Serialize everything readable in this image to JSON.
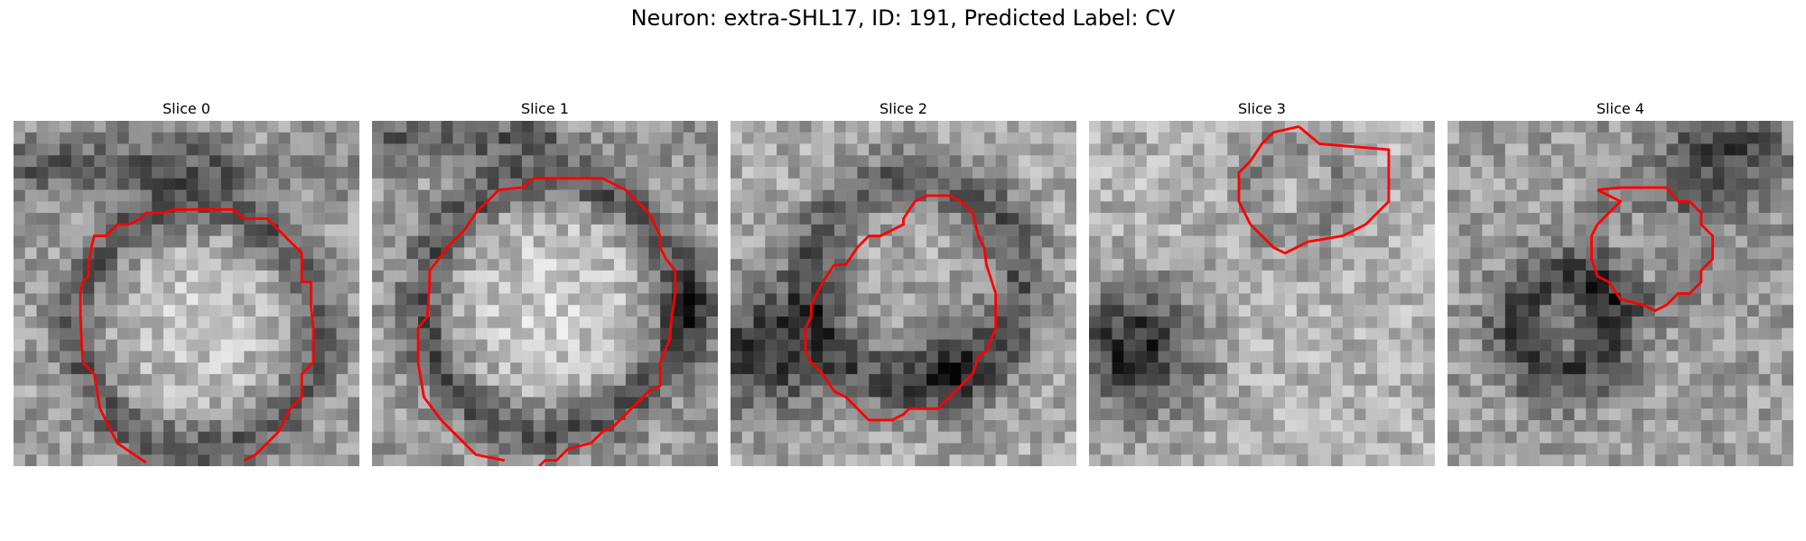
{
  "figure": {
    "title": "Neuron: extra-SHL17, ID: 191, Predicted Label: CV"
  },
  "panels": [
    {
      "title": "Slice 0",
      "pattern": "ring-large",
      "contour_color": "#ff0000"
    },
    {
      "title": "Slice 1",
      "pattern": "ring-large-bright",
      "contour_color": "#ff0000"
    },
    {
      "title": "Slice 2",
      "pattern": "ring-mid-dark",
      "contour_color": "#ff0000"
    },
    {
      "title": "Slice 3",
      "pattern": "blob-dark-left",
      "contour_color": "#ff0000"
    },
    {
      "title": "Slice 4",
      "pattern": "ring-small",
      "contour_color": "#ff0000"
    }
  ]
}
